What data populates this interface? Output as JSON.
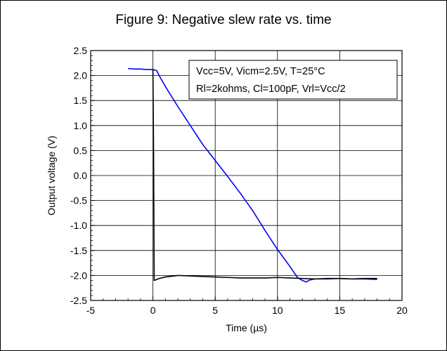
{
  "chart_data": {
    "type": "line",
    "title": "Figure 9: Negative slew rate vs. time",
    "xlabel": "Time (µs)",
    "ylabel": "Output voltage (V)",
    "xlim": [
      -5,
      20
    ],
    "ylim": [
      -2.5,
      2.5
    ],
    "xticks": [
      "-5",
      "0",
      "5",
      "10",
      "15",
      "20"
    ],
    "yticks": [
      "2.5",
      "2.0",
      "1.5",
      "1.0",
      "0.5",
      "0.0",
      "-0.5",
      "-1.0",
      "-1.5",
      "-2.0",
      "-2.5"
    ],
    "grid": true,
    "annotation": [
      "Vcc=5V, Vicm=2.5V, T=25°C",
      "Rl=2kohms, Cl=100pF, Vrl=Vcc/2"
    ],
    "series": [
      {
        "color": "#0000ff",
        "x": [
          -2.0,
          -1.5,
          -1.0,
          -0.5,
          0.0,
          0.3,
          0.5,
          1.0,
          2.0,
          3.0,
          4.0,
          5.0,
          6.0,
          7.0,
          8.0,
          9.0,
          10.0,
          11.0,
          11.6,
          12.0,
          12.3,
          12.6,
          13.0,
          14.0,
          15.0,
          16.0,
          17.0,
          18.0
        ],
        "y": [
          2.14,
          2.13,
          2.13,
          2.12,
          2.12,
          2.1,
          2.0,
          1.78,
          1.38,
          1.0,
          0.62,
          0.3,
          -0.02,
          -0.35,
          -0.7,
          -1.1,
          -1.48,
          -1.82,
          -2.04,
          -2.1,
          -2.13,
          -2.09,
          -2.07,
          -2.07,
          -2.06,
          -2.07,
          -2.07,
          -2.08
        ]
      },
      {
        "color": "#000000",
        "x": [
          0.0,
          0.05,
          0.1,
          0.3,
          0.5,
          1.0,
          2.0,
          3.0,
          4.0,
          5.0,
          6.0,
          7.0,
          8.0,
          9.0,
          10.0,
          11.0,
          12.0,
          13.0,
          14.0,
          15.0,
          16.0,
          17.0,
          18.0
        ],
        "y": [
          2.12,
          0.5,
          -2.1,
          -2.08,
          -2.06,
          -2.03,
          -2.0,
          -2.01,
          -2.02,
          -2.03,
          -2.04,
          -2.05,
          -2.05,
          -2.05,
          -2.04,
          -2.05,
          -2.06,
          -2.07,
          -2.06,
          -2.06,
          -2.07,
          -2.06,
          -2.06
        ]
      }
    ]
  }
}
